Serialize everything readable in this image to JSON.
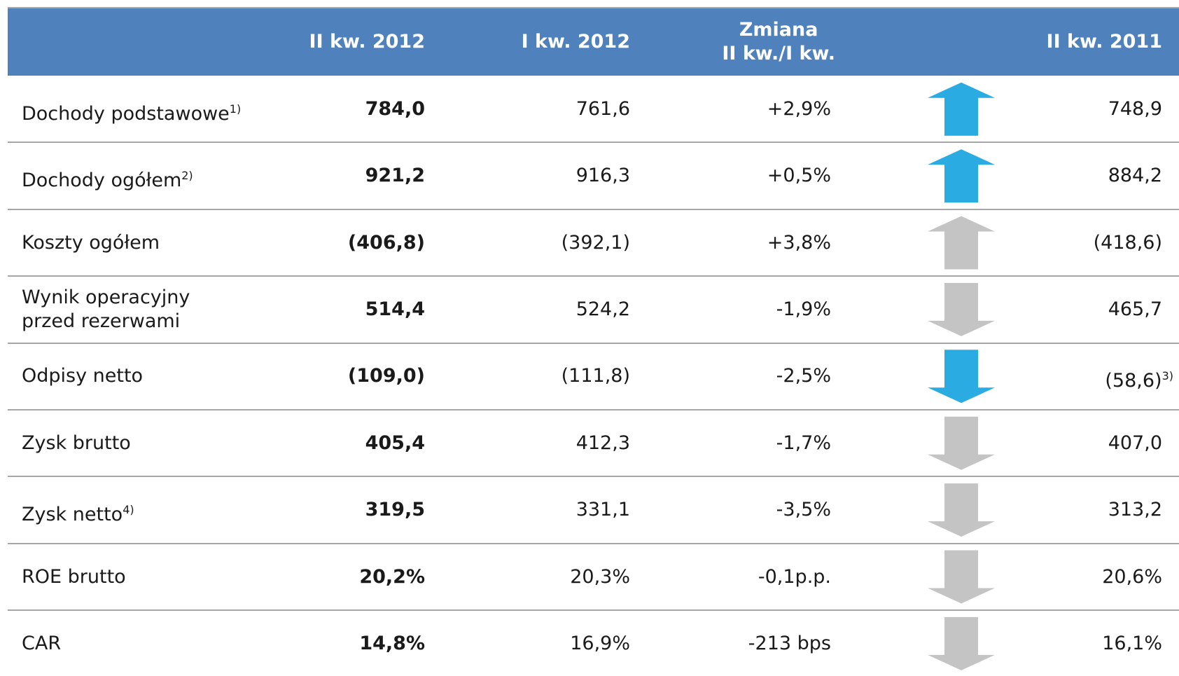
{
  "table": {
    "header": [
      "II kw. 2012",
      "I kw. 2012",
      "Zmiana\nII kw./I kw.",
      "II kw. 2011"
    ],
    "rows": [
      {
        "label": "Dochody podstawowe",
        "note": "1)",
        "cells": [
          "784,0",
          "761,6",
          "+2,9%",
          "748,9"
        ],
        "arrow": "up",
        "arrow_color": "#2aabe2"
      },
      {
        "label": "Dochody ogółem",
        "note": "2)",
        "cells": [
          "921,2",
          "916,3",
          "+0,5%",
          "884,2"
        ],
        "arrow": "up",
        "arrow_color": "#2aabe2"
      },
      {
        "label": "Koszty ogółem",
        "cells": [
          "(406,8)",
          "(392,1)",
          "+3,8%",
          "(418,6)"
        ],
        "arrow": "up",
        "arrow_color": "#c4c4c4"
      },
      {
        "label": "Wynik operacyjny\nprzed rezerwami",
        "cells": [
          "514,4",
          "524,2",
          "-1,9%",
          "465,7"
        ],
        "arrow": "down",
        "arrow_color": "#c4c4c4"
      },
      {
        "label": "Odpisy netto",
        "cells": [
          "(109,0)",
          "(111,8)",
          "-2,5%",
          "(58,6)"
        ],
        "cell_note": "3)",
        "arrow": "down",
        "arrow_color": "#2aabe2"
      },
      {
        "label": "Zysk brutto",
        "cells": [
          "405,4",
          "412,3",
          "-1,7%",
          "407,0"
        ],
        "arrow": "down",
        "arrow_color": "#c4c4c4"
      },
      {
        "label": "Zysk netto",
        "note": "4)",
        "cells": [
          "319,5",
          "331,1",
          "-3,5%",
          "313,2"
        ],
        "arrow": "down",
        "arrow_color": "#c4c4c4"
      },
      {
        "label": "ROE brutto",
        "cells": [
          "20,2%",
          "20,3%",
          "-0,1p.p.",
          "20,6%"
        ],
        "arrow": "down",
        "arrow_color": "#c4c4c4"
      },
      {
        "label": "CAR",
        "cells": [
          "14,8%",
          "16,9%",
          "-213 bps",
          "16,1%"
        ],
        "arrow": "down",
        "arrow_color": "#c4c4c4"
      }
    ]
  }
}
